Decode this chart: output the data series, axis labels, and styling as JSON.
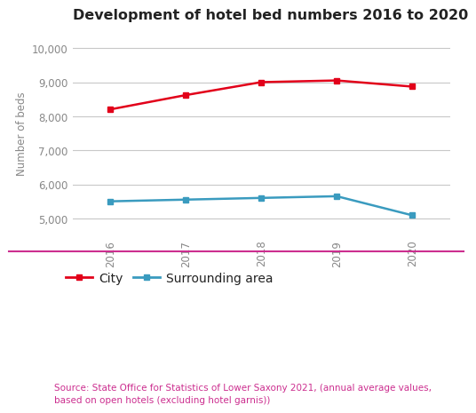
{
  "title": "Development of hotel bed numbers 2016 to 2020",
  "years": [
    2016,
    2017,
    2018,
    2019,
    2020
  ],
  "city_values": [
    8200,
    8620,
    9000,
    9050,
    8870
  ],
  "surrounding_values": [
    5500,
    5550,
    5600,
    5650,
    5090
  ],
  "city_color": "#e2001a",
  "surrounding_color": "#3a9bbf",
  "ylabel": "Number of beds",
  "ylim": [
    4500,
    10500
  ],
  "yticks": [
    5000,
    6000,
    7000,
    8000,
    9000,
    10000
  ],
  "ytick_labels": [
    "5,000",
    "6,000",
    "7,000",
    "8,000",
    "9,000",
    "10,000"
  ],
  "separator_color": "#cc2e8f",
  "source_text": "Source: State Office for Statistics of Lower Saxony 2021, (annual average values,\nbased on open hotels (excluding hotel garnis))",
  "source_color": "#cc2e8f",
  "background_color": "#ffffff",
  "grid_color": "#c8c8c8",
  "title_fontsize": 11.5,
  "axis_fontsize": 8.5,
  "legend_fontsize": 10,
  "source_fontsize": 7.5
}
